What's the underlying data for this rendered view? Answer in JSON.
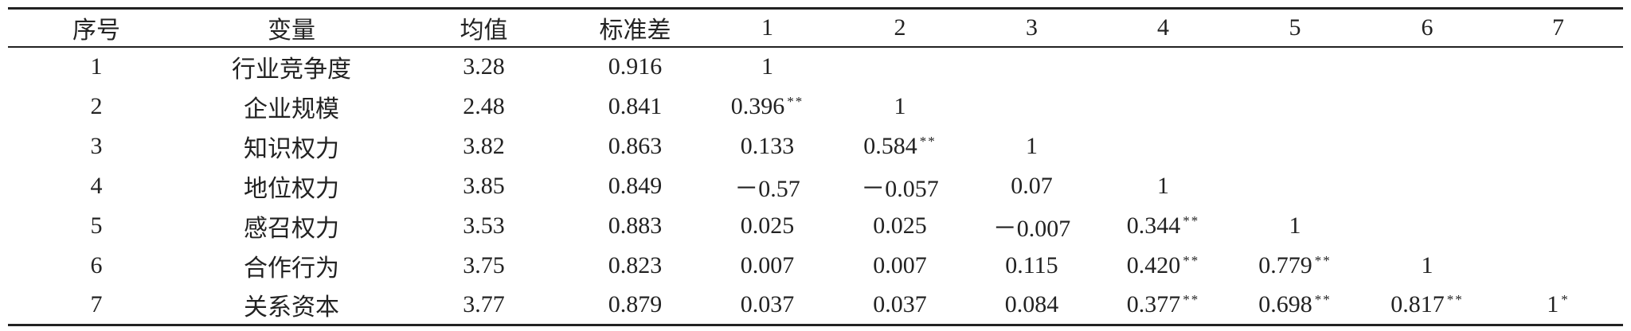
{
  "table": {
    "header": [
      "序号",
      "变量",
      "均值",
      "标准差",
      "1",
      "2",
      "3",
      "4",
      "5",
      "6",
      "7"
    ],
    "rows": [
      [
        "1",
        "行业竞争度",
        "3.28",
        "0.916",
        "1"
      ],
      [
        "2",
        "企业规模",
        "2.48",
        "0.841",
        {
          "value": "0.396",
          "mark": "**"
        },
        "1"
      ],
      [
        "3",
        "知识权力",
        "3.82",
        "0.863",
        "0.133",
        {
          "value": "0.584",
          "mark": "**"
        },
        "1"
      ],
      [
        "4",
        "地位权力",
        "3.85",
        "0.849",
        "－0.57",
        "－0.057",
        "0.07",
        "1"
      ],
      [
        "5",
        "感召权力",
        "3.53",
        "0.883",
        "0.025",
        "0.025",
        "－0.007",
        {
          "value": "0.344",
          "mark": "**"
        },
        "1"
      ],
      [
        "6",
        "合作行为",
        "3.75",
        "0.823",
        "0.007",
        "0.007",
        "0.115",
        {
          "value": "0.420",
          "mark": "**"
        },
        {
          "value": "0.779",
          "mark": "**"
        },
        "1"
      ],
      [
        "7",
        "关系资本",
        "3.77",
        "0.879",
        "0.037",
        "0.037",
        "0.084",
        {
          "value": "0.377",
          "mark": "**"
        },
        {
          "value": "0.698",
          "mark": "**"
        },
        {
          "value": "0.817",
          "mark": "**"
        },
        {
          "value": "1",
          "mark": "*"
        }
      ]
    ]
  }
}
